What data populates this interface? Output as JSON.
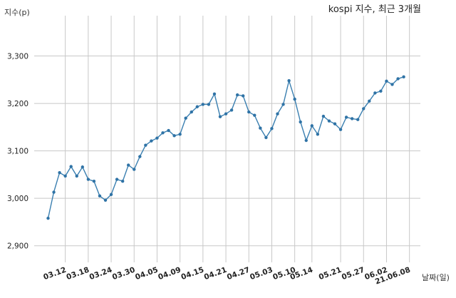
{
  "chart_data": {
    "type": "line",
    "title": "kospi 지수, 최근 3개월",
    "ylabel": "지수(p)",
    "xlabel": "날짜(일)",
    "ylim": [
      2865,
      3385
    ],
    "y_ticks": [
      2900,
      3000,
      3100,
      3200,
      3300
    ],
    "y_tick_labels": [
      "2,900",
      "3,000",
      "3,100",
      "3,200",
      "3,300"
    ],
    "grid": true,
    "x_tick_labels": [
      "03.12",
      "03.18",
      "03.24",
      "03.30",
      "04.05",
      "04.09",
      "04.15",
      "04.21",
      "04.27",
      "05.03",
      "05.10",
      "05.14",
      "05.21",
      "05.27",
      "06.02",
      "21.06.08"
    ],
    "x_tick_positions": [
      3,
      7,
      11,
      15,
      19,
      23,
      27,
      31,
      35,
      39,
      43,
      46,
      51,
      55,
      59,
      63
    ],
    "series": [
      {
        "values": [
          2958,
          3013,
          3054,
          3047,
          3067,
          3047,
          3066,
          3040,
          3036,
          3005,
          2996,
          3008,
          3040,
          3036,
          3070,
          3061,
          3088,
          3112,
          3121,
          3127,
          3138,
          3143,
          3132,
          3135,
          3169,
          3182,
          3193,
          3198,
          3198,
          3220,
          3172,
          3178,
          3186,
          3218,
          3216,
          3182,
          3175,
          3148,
          3128,
          3147,
          3178,
          3198,
          3248,
          3209,
          3161,
          3122,
          3153,
          3135,
          3173,
          3163,
          3157,
          3145,
          3171,
          3168,
          3166,
          3189,
          3205,
          3222,
          3226,
          3247,
          3240,
          3252,
          3256
        ]
      }
    ]
  }
}
